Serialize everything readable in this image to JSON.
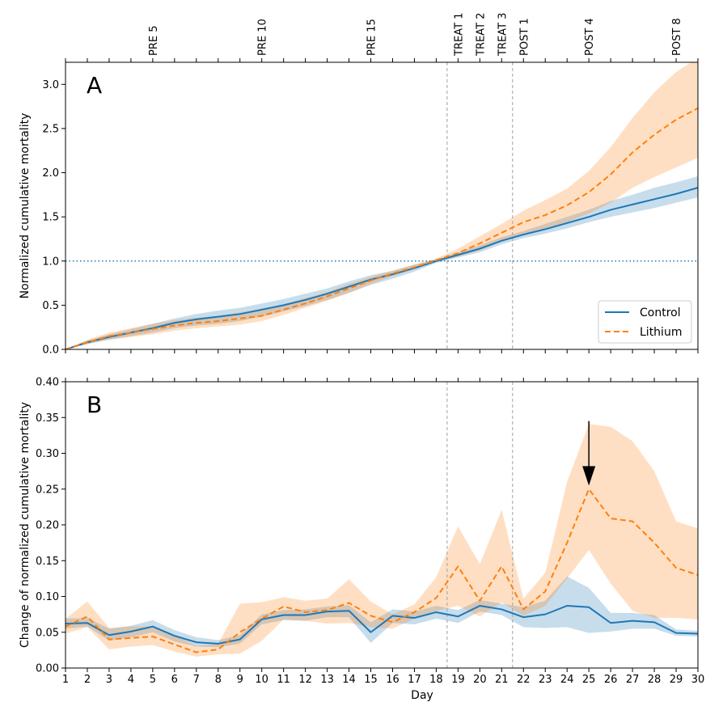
{
  "chart_data": [
    {
      "type": "line",
      "panel_label": "A",
      "ylabel": "Normalized cumulative mortality",
      "xlabel": "",
      "x": [
        1,
        2,
        3,
        4,
        5,
        6,
        7,
        8,
        9,
        10,
        11,
        12,
        13,
        14,
        15,
        16,
        17,
        18,
        19,
        20,
        21,
        22,
        23,
        24,
        25,
        26,
        27,
        28,
        29,
        30
      ],
      "xlim": [
        1,
        30
      ],
      "ylim": [
        0,
        3.25
      ],
      "yticks": [
        0.0,
        0.5,
        1.0,
        1.5,
        2.0,
        2.5,
        3.0
      ],
      "ytick_labels": [
        "0.0",
        "0.5",
        "1.0",
        "1.5",
        "2.0",
        "2.5",
        "3.0"
      ],
      "hline": 1.0,
      "vlines": [
        18.5,
        21.5
      ],
      "top_axis_labels": [
        {
          "x": 5,
          "label": "PRE 5"
        },
        {
          "x": 10,
          "label": "PRE 10"
        },
        {
          "x": 15,
          "label": "PRE 15"
        },
        {
          "x": 19,
          "label": "TREAT 1"
        },
        {
          "x": 20,
          "label": "TREAT 2"
        },
        {
          "x": 21,
          "label": "TREAT 3"
        },
        {
          "x": 22,
          "label": "POST 1"
        },
        {
          "x": 25,
          "label": "POST 4"
        },
        {
          "x": 29,
          "label": "POST 8"
        }
      ],
      "legend": {
        "position": "lower-right",
        "entries": [
          "Control",
          "Lithium"
        ]
      },
      "series": [
        {
          "name": "Control",
          "color": "#1f77b4",
          "style": "solid",
          "values": [
            0.0,
            0.08,
            0.14,
            0.19,
            0.24,
            0.3,
            0.34,
            0.37,
            0.4,
            0.45,
            0.5,
            0.56,
            0.63,
            0.71,
            0.79,
            0.85,
            0.92,
            1.0,
            1.07,
            1.14,
            1.23,
            1.3,
            1.36,
            1.43,
            1.5,
            1.58,
            1.64,
            1.7,
            1.76,
            1.83
          ],
          "lower": [
            0.0,
            0.06,
            0.11,
            0.15,
            0.19,
            0.24,
            0.27,
            0.29,
            0.32,
            0.37,
            0.43,
            0.49,
            0.56,
            0.64,
            0.73,
            0.8,
            0.88,
            0.98,
            1.04,
            1.1,
            1.19,
            1.26,
            1.31,
            1.37,
            1.44,
            1.5,
            1.55,
            1.6,
            1.66,
            1.72
          ],
          "upper": [
            0.0,
            0.1,
            0.17,
            0.23,
            0.29,
            0.35,
            0.4,
            0.44,
            0.47,
            0.52,
            0.57,
            0.63,
            0.69,
            0.77,
            0.84,
            0.89,
            0.96,
            1.02,
            1.1,
            1.18,
            1.27,
            1.34,
            1.42,
            1.5,
            1.58,
            1.68,
            1.75,
            1.83,
            1.89,
            1.96
          ]
        },
        {
          "name": "Lithium",
          "color": "#ff7f0e",
          "style": "dashed",
          "values": [
            0.0,
            0.08,
            0.15,
            0.19,
            0.23,
            0.27,
            0.3,
            0.32,
            0.35,
            0.38,
            0.45,
            0.52,
            0.6,
            0.69,
            0.78,
            0.86,
            0.93,
            1.01,
            1.09,
            1.2,
            1.32,
            1.44,
            1.52,
            1.63,
            1.78,
            1.98,
            2.23,
            2.43,
            2.6,
            2.73
          ],
          "lower": [
            0.0,
            0.06,
            0.11,
            0.14,
            0.17,
            0.21,
            0.24,
            0.26,
            0.28,
            0.32,
            0.39,
            0.47,
            0.55,
            0.64,
            0.74,
            0.83,
            0.91,
            0.99,
            1.05,
            1.12,
            1.22,
            1.31,
            1.36,
            1.44,
            1.54,
            1.66,
            1.83,
            1.95,
            2.06,
            2.17
          ],
          "upper": [
            0.0,
            0.11,
            0.19,
            0.24,
            0.29,
            0.33,
            0.36,
            0.38,
            0.42,
            0.45,
            0.51,
            0.58,
            0.65,
            0.74,
            0.82,
            0.89,
            0.96,
            1.03,
            1.14,
            1.28,
            1.42,
            1.57,
            1.69,
            1.82,
            2.02,
            2.29,
            2.62,
            2.91,
            3.14,
            3.3
          ]
        }
      ]
    },
    {
      "type": "line",
      "panel_label": "B",
      "ylabel": "Change of normalized cumulative mortality",
      "xlabel": "Day",
      "x": [
        1,
        2,
        3,
        4,
        5,
        6,
        7,
        8,
        9,
        10,
        11,
        12,
        13,
        14,
        15,
        16,
        17,
        18,
        19,
        20,
        21,
        22,
        23,
        24,
        25,
        26,
        27,
        28,
        29,
        30
      ],
      "xlim": [
        1,
        30
      ],
      "ylim": [
        0,
        0.4
      ],
      "xtick_labels": [
        "1",
        "2",
        "3",
        "4",
        "5",
        "6",
        "7",
        "8",
        "9",
        "10",
        "11",
        "12",
        "13",
        "14",
        "15",
        "16",
        "17",
        "18",
        "19",
        "20",
        "21",
        "22",
        "23",
        "24",
        "25",
        "26",
        "27",
        "28",
        "29",
        "30"
      ],
      "yticks": [
        0.0,
        0.05,
        0.1,
        0.15,
        0.2,
        0.25,
        0.3,
        0.35,
        0.4
      ],
      "ytick_labels": [
        "0.00",
        "0.05",
        "0.10",
        "0.15",
        "0.20",
        "0.25",
        "0.30",
        "0.35",
        "0.40"
      ],
      "vlines": [
        18.5,
        21.5
      ],
      "annotations": [
        {
          "type": "arrow",
          "x": 25,
          "y_from": 0.345,
          "y_to": 0.255
        }
      ],
      "series": [
        {
          "name": "Control",
          "color": "#1f77b4",
          "style": "solid",
          "values": [
            0.062,
            0.063,
            0.046,
            0.051,
            0.058,
            0.045,
            0.036,
            0.034,
            0.04,
            0.068,
            0.074,
            0.074,
            0.079,
            0.08,
            0.05,
            0.073,
            0.07,
            0.078,
            0.072,
            0.087,
            0.082,
            0.071,
            0.075,
            0.087,
            0.085,
            0.063,
            0.066,
            0.064,
            0.049,
            0.048
          ],
          "lower": [
            0.055,
            0.058,
            0.038,
            0.043,
            0.05,
            0.037,
            0.03,
            0.029,
            0.034,
            0.061,
            0.067,
            0.066,
            0.071,
            0.071,
            0.035,
            0.063,
            0.061,
            0.069,
            0.063,
            0.079,
            0.074,
            0.057,
            0.056,
            0.057,
            0.049,
            0.051,
            0.055,
            0.055,
            0.045,
            0.044
          ],
          "upper": [
            0.069,
            0.07,
            0.055,
            0.059,
            0.067,
            0.053,
            0.043,
            0.039,
            0.046,
            0.075,
            0.081,
            0.082,
            0.086,
            0.088,
            0.064,
            0.082,
            0.079,
            0.087,
            0.081,
            0.095,
            0.09,
            0.085,
            0.094,
            0.128,
            0.112,
            0.077,
            0.077,
            0.074,
            0.054,
            0.052
          ]
        },
        {
          "name": "Lithium",
          "color": "#ff7f0e",
          "style": "dashed",
          "values": [
            0.058,
            0.072,
            0.04,
            0.042,
            0.044,
            0.033,
            0.022,
            0.026,
            0.05,
            0.069,
            0.086,
            0.078,
            0.081,
            0.091,
            0.073,
            0.064,
            0.078,
            0.098,
            0.142,
            0.094,
            0.142,
            0.082,
            0.107,
            0.175,
            0.25,
            0.209,
            0.205,
            0.175,
            0.14,
            0.13
          ],
          "lower": [
            0.048,
            0.057,
            0.026,
            0.03,
            0.032,
            0.023,
            0.016,
            0.019,
            0.02,
            0.038,
            0.068,
            0.066,
            0.062,
            0.063,
            0.057,
            0.055,
            0.069,
            0.08,
            0.087,
            0.072,
            0.092,
            0.073,
            0.087,
            0.125,
            0.165,
            0.118,
            0.08,
            0.07,
            0.07,
            0.068
          ],
          "upper": [
            0.069,
            0.093,
            0.056,
            0.058,
            0.058,
            0.046,
            0.031,
            0.034,
            0.09,
            0.092,
            0.099,
            0.094,
            0.097,
            0.124,
            0.093,
            0.075,
            0.089,
            0.127,
            0.198,
            0.145,
            0.221,
            0.097,
            0.133,
            0.26,
            0.341,
            0.337,
            0.317,
            0.275,
            0.205,
            0.195
          ]
        }
      ]
    }
  ]
}
